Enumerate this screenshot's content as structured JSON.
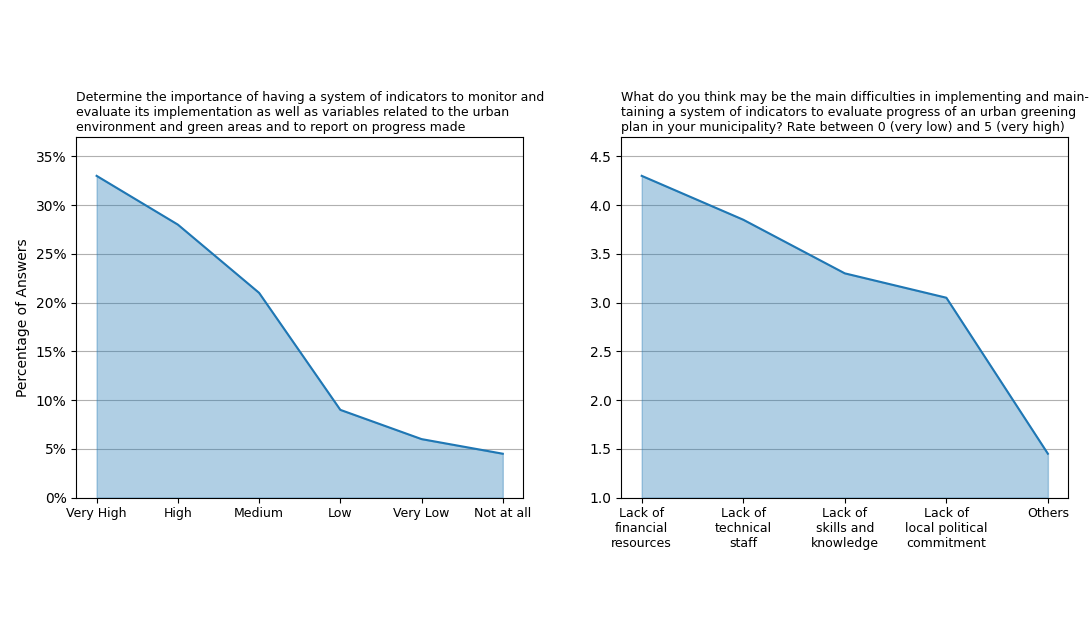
{
  "chart_data": [
    {
      "type": "area",
      "title": "Determine the importance of having a system of indicators to monitor and\nevaluate its implementation as well as variables related to the urban\nenvironment and green areas and to report on progress made",
      "categories": [
        "Very High",
        "High",
        "Medium",
        "Low",
        "Very Low",
        "Not at all"
      ],
      "values": [
        33,
        28,
        21,
        9,
        6,
        4.5
      ],
      "y_label": "Percentage of Answers",
      "ylim": [
        0,
        37
      ],
      "yticks": [
        {
          "value": 0,
          "label": "0%"
        },
        {
          "value": 5,
          "label": "5%"
        },
        {
          "value": 10,
          "label": "10%"
        },
        {
          "value": 15,
          "label": "15%"
        },
        {
          "value": 20,
          "label": "20%"
        },
        {
          "value": 25,
          "label": "25%"
        },
        {
          "value": 30,
          "label": "30%"
        },
        {
          "value": 35,
          "label": "35%"
        }
      ],
      "grid": true
    },
    {
      "type": "area",
      "title": "What do you think may be the main difficulties in implementing and main-\ntaining a system of indicators to evaluate progress of an urban greening\nplan in your municipality? Rate between 0 (very low) and 5 (very high)",
      "categories": [
        "Lack of\nfinancial\nresources",
        "Lack of\ntechnical\nstaff",
        "Lack of\nskills and\nknowledge",
        "Lack of\nlocal political\ncommitment",
        "Others"
      ],
      "values": [
        4.3,
        3.85,
        3.3,
        3.05,
        1.45
      ],
      "ylim": [
        1.0,
        4.7
      ],
      "yticks": [
        {
          "value": 1.0,
          "label": "1.0"
        },
        {
          "value": 1.5,
          "label": "1.5"
        },
        {
          "value": 2.0,
          "label": "2.0"
        },
        {
          "value": 2.5,
          "label": "2.5"
        },
        {
          "value": 3.0,
          "label": "3.0"
        },
        {
          "value": 3.5,
          "label": "3.5"
        },
        {
          "value": 4.0,
          "label": "4.0"
        },
        {
          "value": 4.5,
          "label": "4.5"
        }
      ],
      "grid": true
    }
  ]
}
